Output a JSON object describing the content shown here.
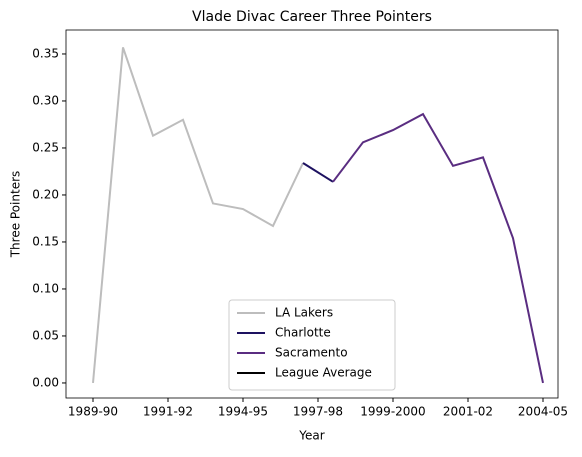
{
  "chart_data": {
    "type": "line",
    "title": "Vlade Divac Career Three Pointers",
    "xlabel": "Year",
    "ylabel": "Three Pointers",
    "x": [
      0,
      1,
      2,
      3,
      4,
      5,
      6,
      7,
      8,
      9,
      10,
      11,
      12,
      13,
      14,
      15
    ],
    "series": [
      {
        "name": "LA Lakers",
        "color": "#bdbdbd",
        "values": [
          0.0,
          0.357,
          0.263,
          0.28,
          0.191,
          0.185,
          0.167,
          0.234,
          null,
          null,
          null,
          null,
          null,
          null,
          null,
          null
        ]
      },
      {
        "name": "Charlotte",
        "color": "#1d1160",
        "values": [
          null,
          null,
          null,
          null,
          null,
          null,
          null,
          0.234,
          0.214,
          null,
          null,
          null,
          null,
          null,
          null,
          null
        ]
      },
      {
        "name": "Sacramento",
        "color": "#5a2d81",
        "values": [
          null,
          null,
          null,
          null,
          null,
          null,
          null,
          null,
          0.214,
          0.256,
          0.269,
          0.286,
          0.231,
          0.24,
          0.154,
          0.0
        ]
      },
      {
        "name": "League Average",
        "color": "#000000",
        "values": [
          null,
          null,
          null,
          null,
          null,
          null,
          null,
          null,
          null,
          null,
          null,
          null,
          null,
          null,
          null,
          null
        ]
      }
    ],
    "xlim": [
      -0.9,
      15.5
    ],
    "xticks": [
      {
        "value": 0,
        "label": "1989-90"
      },
      {
        "value": 2.5,
        "label": "1991-92"
      },
      {
        "value": 5,
        "label": "1994-95"
      },
      {
        "value": 7.5,
        "label": "1997-98"
      },
      {
        "value": 10,
        "label": "1999-2000"
      },
      {
        "value": 12.5,
        "label": "2001-02"
      },
      {
        "value": 15,
        "label": "2004-05"
      }
    ],
    "ylim": [
      -0.016,
      0.3755
    ],
    "yticks": [
      {
        "value": 0,
        "label": "0.00"
      },
      {
        "value": 0.05,
        "label": "0.05"
      },
      {
        "value": 0.1,
        "label": "0.10"
      },
      {
        "value": 0.15,
        "label": "0.15"
      },
      {
        "value": 0.2,
        "label": "0.20"
      },
      {
        "value": 0.25,
        "label": "0.25"
      },
      {
        "value": 0.3,
        "label": "0.30"
      },
      {
        "value": 0.35,
        "label": "0.35"
      }
    ],
    "legend": "lower center"
  }
}
